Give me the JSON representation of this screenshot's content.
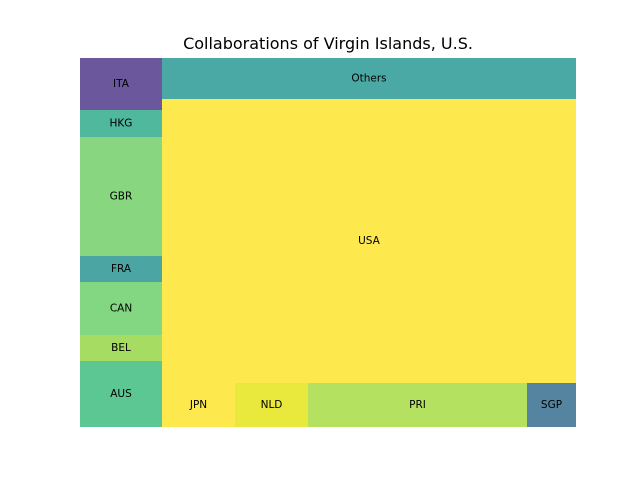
{
  "chart_data": {
    "type": "treemap",
    "title": "Collaborations of Virgin Islands, U.S.",
    "cells": [
      {
        "label": "ITA",
        "value": 52,
        "color": "#6b579c"
      },
      {
        "label": "HKG",
        "value": 27,
        "color": "#4fb89d"
      },
      {
        "label": "GBR",
        "value": 120,
        "color": "#88d780"
      },
      {
        "label": "FRA",
        "value": 26,
        "color": "#4ba6a3"
      },
      {
        "label": "CAN",
        "value": 53,
        "color": "#83d682"
      },
      {
        "label": "BEL",
        "value": 26,
        "color": "#a6dc62"
      },
      {
        "label": "AUS",
        "value": 66,
        "color": "#5cc793"
      },
      {
        "label": "Others",
        "value": 206,
        "color": "#4ba9a5"
      },
      {
        "label": "USA",
        "value": 1474,
        "color": "#fde94e"
      },
      {
        "label": "JPN",
        "value": 91,
        "color": "#fde94e"
      },
      {
        "label": "NLD",
        "value": 91,
        "color": "#e9e83d"
      },
      {
        "label": "PRI",
        "value": 275,
        "color": "#b5e160"
      },
      {
        "label": "SGP",
        "value": 61,
        "color": "#5584a0"
      }
    ]
  }
}
